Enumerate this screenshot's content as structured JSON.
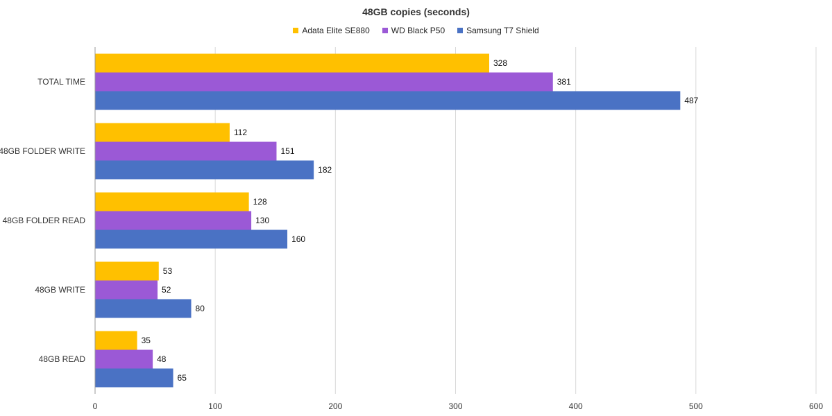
{
  "chart_data": {
    "type": "bar",
    "orientation": "horizontal",
    "title": "48GB copies (seconds)",
    "categories": [
      "TOTAL TIME",
      "48GB FOLDER WRITE",
      "48GB FOLDER READ",
      "48GB WRITE",
      "48GB READ"
    ],
    "series": [
      {
        "name": "Adata Elite SE880",
        "color": "#ffc000",
        "values": [
          328,
          112,
          128,
          53,
          35
        ]
      },
      {
        "name": "WD Black P50",
        "color": "#9b59d6",
        "values": [
          381,
          151,
          130,
          52,
          48
        ]
      },
      {
        "name": "Samsung T7 Shield",
        "color": "#4a72c4",
        "values": [
          487,
          182,
          160,
          80,
          65
        ]
      }
    ],
    "xlim": [
      0,
      600
    ],
    "xticks": [
      0,
      100,
      200,
      300,
      400,
      500,
      600
    ],
    "xlabel": "",
    "ylabel": "",
    "grid": "vertical",
    "legend_position": "top",
    "data_labels": true
  }
}
